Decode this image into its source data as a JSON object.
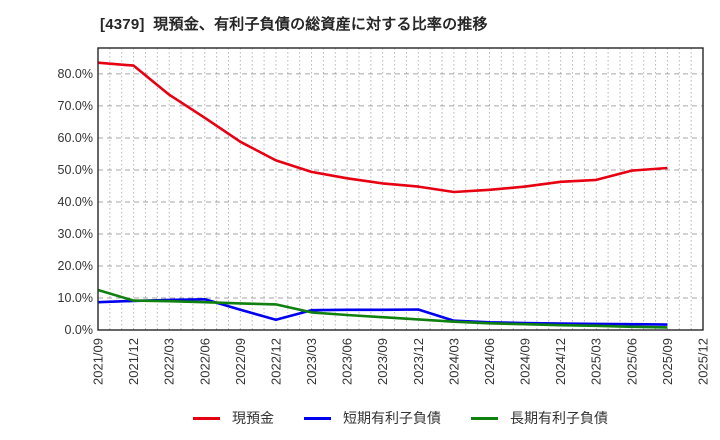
{
  "chart_data": {
    "type": "line",
    "title": "[4379]  現預金、有利子負債の総資産に対する比率の推移",
    "categories": [
      "2021/09",
      "2021/12",
      "2022/03",
      "2022/06",
      "2022/09",
      "2022/12",
      "2023/03",
      "2023/06",
      "2023/09",
      "2023/12",
      "2024/03",
      "2024/06",
      "2024/09",
      "2024/12",
      "2025/03",
      "2025/06",
      "2025/09",
      "2025/12"
    ],
    "series": [
      {
        "name": "現預金",
        "color": "#e60012",
        "values": [
          83.5,
          82.6,
          73.5,
          66.3,
          58.8,
          53.0,
          49.4,
          47.4,
          45.8,
          44.8,
          43.1,
          43.8,
          44.8,
          46.3,
          46.9,
          49.8,
          50.6,
          null
        ]
      },
      {
        "name": "短期有利子負債",
        "color": "#0000ee",
        "values": [
          8.7,
          9.1,
          9.4,
          9.6,
          6.3,
          3.2,
          6.2,
          6.3,
          6.3,
          6.4,
          2.9,
          2.4,
          2.2,
          2.0,
          1.9,
          1.8,
          1.7,
          null
        ]
      },
      {
        "name": "長期有利子負債",
        "color": "#108010",
        "values": [
          12.5,
          9.2,
          9.0,
          8.7,
          8.3,
          8.0,
          5.5,
          4.7,
          4.0,
          3.3,
          2.6,
          2.1,
          1.8,
          1.5,
          1.3,
          1.0,
          0.8,
          null
        ]
      }
    ],
    "y_ticks": [
      "0.0%",
      "10.0%",
      "20.0%",
      "30.0%",
      "40.0%",
      "50.0%",
      "60.0%",
      "70.0%",
      "80.0%"
    ],
    "ylim": [
      0,
      88.1
    ],
    "grid": true,
    "x_tick_rotation": 90,
    "legend_position": "bottom"
  }
}
